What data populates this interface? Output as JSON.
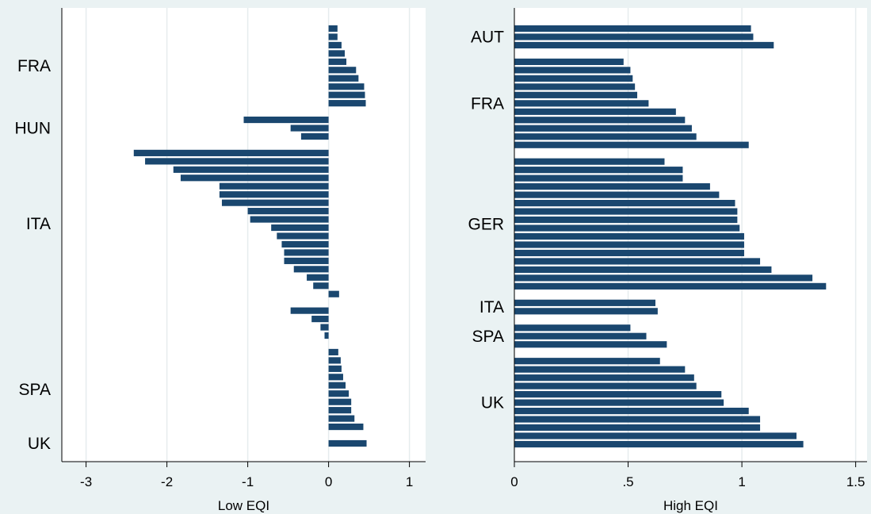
{
  "chart_data": [
    {
      "type": "bar",
      "orientation": "horizontal",
      "xlabel": "Low EQI",
      "xlim": [
        -3.3,
        1.2
      ],
      "xticks": [
        -3,
        -2,
        -1,
        0,
        1
      ],
      "xtick_labels": [
        "-3",
        "-2",
        "-1",
        "0",
        "1"
      ],
      "grid": true,
      "bar_color": "#1a476f",
      "groups": [
        {
          "label": "FRA",
          "values": [
            0.11,
            0.11,
            0.16,
            0.2,
            0.22,
            0.34,
            0.37,
            0.44,
            0.45,
            0.46
          ]
        },
        {
          "label": "HUN",
          "values": [
            -1.05,
            -0.47,
            -0.34
          ]
        },
        {
          "label": "ITA",
          "values": [
            -2.41,
            -2.27,
            -1.92,
            -1.83,
            -1.35,
            -1.35,
            -1.32,
            -1.0,
            -0.97,
            -0.71,
            -0.64,
            -0.58,
            -0.55,
            -0.55,
            -0.43,
            -0.27,
            -0.19,
            0.13
          ]
        },
        {
          "label": "",
          "values": [
            -0.47,
            -0.21,
            -0.1,
            -0.05
          ]
        },
        {
          "label": "SPA",
          "values": [
            0.12,
            0.15,
            0.16,
            0.18,
            0.21,
            0.25,
            0.28,
            0.28,
            0.32,
            0.43
          ]
        },
        {
          "label": "UK",
          "values": [
            0.47
          ]
        }
      ]
    },
    {
      "type": "bar",
      "orientation": "horizontal",
      "xlabel": "High EQI",
      "xlim": [
        0,
        1.55
      ],
      "xticks": [
        0,
        0.5,
        1,
        1.5
      ],
      "xtick_labels": [
        "0",
        ".5",
        "1",
        "1.5"
      ],
      "grid": true,
      "bar_color": "#1a476f",
      "groups": [
        {
          "label": "AUT",
          "values": [
            1.04,
            1.05,
            1.14
          ]
        },
        {
          "label": "FRA",
          "values": [
            0.48,
            0.51,
            0.52,
            0.53,
            0.54,
            0.59,
            0.71,
            0.75,
            0.78,
            0.8,
            1.03
          ]
        },
        {
          "label": "GER",
          "values": [
            0.66,
            0.74,
            0.74,
            0.86,
            0.9,
            0.97,
            0.98,
            0.98,
            0.99,
            1.01,
            1.01,
            1.01,
            1.08,
            1.13,
            1.31,
            1.37
          ]
        },
        {
          "label": "ITA",
          "values": [
            0.62,
            0.63
          ]
        },
        {
          "label": "SPA",
          "values": [
            0.51,
            0.58,
            0.67
          ]
        },
        {
          "label": "UK",
          "values": [
            0.64,
            0.75,
            0.79,
            0.8,
            0.91,
            0.92,
            1.03,
            1.08,
            1.08,
            1.24,
            1.27
          ]
        }
      ]
    }
  ]
}
